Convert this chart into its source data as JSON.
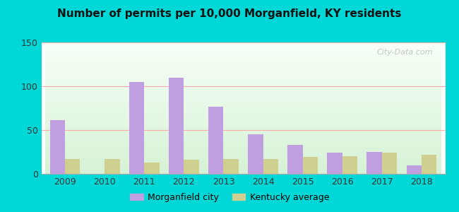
{
  "title": "Number of permits per 10,000 Morganfield, KY residents",
  "years": [
    2009,
    2010,
    2011,
    2012,
    2013,
    2014,
    2015,
    2016,
    2017,
    2018
  ],
  "morganfield": [
    61,
    0,
    105,
    110,
    77,
    45,
    33,
    24,
    25,
    10
  ],
  "kentucky": [
    17,
    17,
    13,
    16,
    17,
    17,
    19,
    20,
    24,
    22
  ],
  "morganfield_color": "#bf9fdf",
  "kentucky_color": "#cfcf8f",
  "outer_bg": "#00d8d8",
  "ylim": [
    0,
    150
  ],
  "yticks": [
    0,
    50,
    100,
    150
  ],
  "bar_width": 0.38,
  "legend_labels": [
    "Morganfield city",
    "Kentucky average"
  ],
  "watermark": "City-Data.com"
}
